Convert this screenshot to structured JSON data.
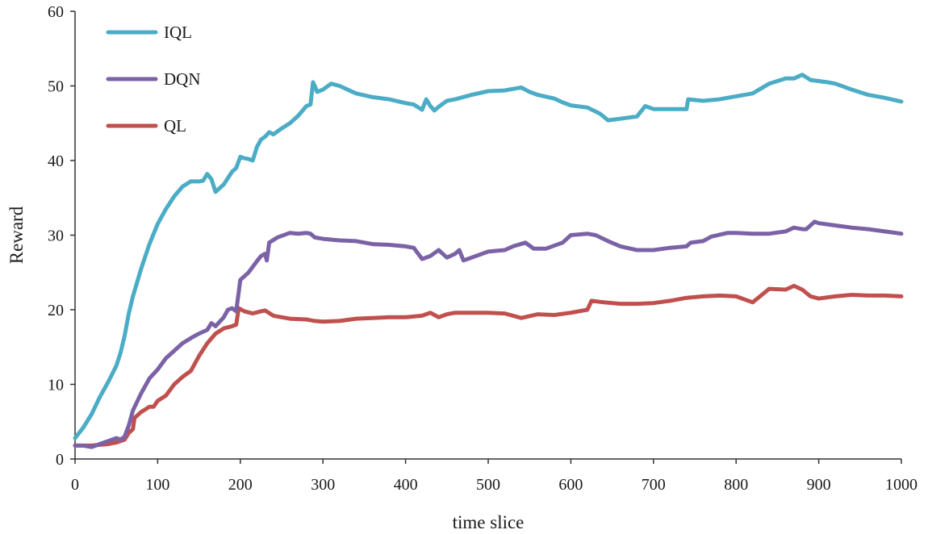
{
  "chart_data": {
    "type": "line",
    "title": "",
    "xlabel": "time slice",
    "ylabel": "Reward",
    "xlim": [
      0,
      1000
    ],
    "ylim": [
      0,
      60
    ],
    "x_ticks": [
      0,
      100,
      200,
      300,
      400,
      500,
      600,
      700,
      800,
      900,
      1000
    ],
    "y_ticks": [
      0,
      10,
      20,
      30,
      40,
      50,
      60
    ],
    "grid": false,
    "legend_position": "top-left",
    "series": [
      {
        "name": "IQL",
        "color": "#4bacc6",
        "points": [
          [
            0,
            2.8
          ],
          [
            10,
            4.2
          ],
          [
            20,
            6.0
          ],
          [
            30,
            8.3
          ],
          [
            40,
            10.3
          ],
          [
            50,
            12.5
          ],
          [
            55,
            14.2
          ],
          [
            60,
            16.5
          ],
          [
            65,
            19.5
          ],
          [
            70,
            21.8
          ],
          [
            80,
            25.5
          ],
          [
            90,
            28.8
          ],
          [
            100,
            31.5
          ],
          [
            110,
            33.5
          ],
          [
            120,
            35.2
          ],
          [
            130,
            36.5
          ],
          [
            140,
            37.2
          ],
          [
            150,
            37.2
          ],
          [
            155,
            37.3
          ],
          [
            160,
            38.2
          ],
          [
            165,
            37.5
          ],
          [
            170,
            35.8
          ],
          [
            180,
            36.8
          ],
          [
            190,
            38.5
          ],
          [
            195,
            39.0
          ],
          [
            200,
            40.5
          ],
          [
            205,
            40.3
          ],
          [
            210,
            40.2
          ],
          [
            215,
            40.0
          ],
          [
            220,
            41.8
          ],
          [
            225,
            42.8
          ],
          [
            230,
            43.2
          ],
          [
            235,
            43.8
          ],
          [
            240,
            43.5
          ],
          [
            250,
            44.3
          ],
          [
            260,
            45.0
          ],
          [
            270,
            46.0
          ],
          [
            280,
            47.3
          ],
          [
            285,
            47.5
          ],
          [
            288,
            50.5
          ],
          [
            290,
            50.0
          ],
          [
            293,
            49.2
          ],
          [
            300,
            49.5
          ],
          [
            310,
            50.3
          ],
          [
            320,
            50.0
          ],
          [
            340,
            49.0
          ],
          [
            360,
            48.5
          ],
          [
            380,
            48.2
          ],
          [
            400,
            47.7
          ],
          [
            410,
            47.5
          ],
          [
            420,
            46.8
          ],
          [
            425,
            48.2
          ],
          [
            430,
            47.3
          ],
          [
            435,
            46.7
          ],
          [
            440,
            47.2
          ],
          [
            450,
            48.0
          ],
          [
            460,
            48.2
          ],
          [
            480,
            48.8
          ],
          [
            500,
            49.3
          ],
          [
            520,
            49.4
          ],
          [
            540,
            49.8
          ],
          [
            550,
            49.2
          ],
          [
            560,
            48.8
          ],
          [
            580,
            48.3
          ],
          [
            590,
            47.8
          ],
          [
            600,
            47.4
          ],
          [
            620,
            47.1
          ],
          [
            635,
            46.3
          ],
          [
            645,
            45.4
          ],
          [
            660,
            45.6
          ],
          [
            680,
            45.9
          ],
          [
            690,
            47.3
          ],
          [
            700,
            46.9
          ],
          [
            720,
            46.9
          ],
          [
            740,
            46.9
          ],
          [
            742,
            48.2
          ],
          [
            760,
            48.0
          ],
          [
            780,
            48.2
          ],
          [
            800,
            48.6
          ],
          [
            820,
            49.0
          ],
          [
            840,
            50.3
          ],
          [
            860,
            51.0
          ],
          [
            870,
            51.0
          ],
          [
            880,
            51.5
          ],
          [
            890,
            50.8
          ],
          [
            910,
            50.5
          ],
          [
            920,
            50.3
          ],
          [
            940,
            49.5
          ],
          [
            960,
            48.8
          ],
          [
            980,
            48.4
          ],
          [
            1000,
            47.9
          ]
        ]
      },
      {
        "name": "DQN",
        "color": "#7b62a6",
        "points": [
          [
            0,
            1.8
          ],
          [
            10,
            1.8
          ],
          [
            20,
            1.6
          ],
          [
            30,
            2.0
          ],
          [
            40,
            2.4
          ],
          [
            50,
            2.8
          ],
          [
            55,
            2.6
          ],
          [
            60,
            3.0
          ],
          [
            65,
            4.5
          ],
          [
            70,
            6.5
          ],
          [
            80,
            8.8
          ],
          [
            90,
            10.8
          ],
          [
            100,
            12.0
          ],
          [
            110,
            13.5
          ],
          [
            120,
            14.5
          ],
          [
            130,
            15.5
          ],
          [
            140,
            16.2
          ],
          [
            150,
            16.8
          ],
          [
            160,
            17.3
          ],
          [
            165,
            18.2
          ],
          [
            170,
            17.8
          ],
          [
            180,
            19.0
          ],
          [
            185,
            20.0
          ],
          [
            190,
            20.2
          ],
          [
            195,
            19.8
          ],
          [
            200,
            24.0
          ],
          [
            210,
            25.0
          ],
          [
            220,
            26.5
          ],
          [
            225,
            27.2
          ],
          [
            230,
            27.5
          ],
          [
            232,
            26.6
          ],
          [
            235,
            29.0
          ],
          [
            245,
            29.7
          ],
          [
            260,
            30.3
          ],
          [
            270,
            30.2
          ],
          [
            280,
            30.3
          ],
          [
            285,
            30.2
          ],
          [
            290,
            29.7
          ],
          [
            300,
            29.5
          ],
          [
            320,
            29.3
          ],
          [
            340,
            29.2
          ],
          [
            360,
            28.8
          ],
          [
            380,
            28.7
          ],
          [
            400,
            28.5
          ],
          [
            410,
            28.3
          ],
          [
            420,
            26.8
          ],
          [
            430,
            27.2
          ],
          [
            440,
            28.0
          ],
          [
            450,
            27.0
          ],
          [
            460,
            27.5
          ],
          [
            465,
            28.0
          ],
          [
            470,
            26.6
          ],
          [
            480,
            27.0
          ],
          [
            500,
            27.8
          ],
          [
            520,
            28.0
          ],
          [
            530,
            28.5
          ],
          [
            545,
            29.0
          ],
          [
            555,
            28.2
          ],
          [
            570,
            28.2
          ],
          [
            590,
            29.0
          ],
          [
            600,
            30.0
          ],
          [
            620,
            30.2
          ],
          [
            630,
            30.0
          ],
          [
            645,
            29.2
          ],
          [
            660,
            28.5
          ],
          [
            680,
            28.0
          ],
          [
            700,
            28.0
          ],
          [
            720,
            28.3
          ],
          [
            740,
            28.5
          ],
          [
            745,
            29.0
          ],
          [
            760,
            29.2
          ],
          [
            770,
            29.8
          ],
          [
            790,
            30.3
          ],
          [
            800,
            30.3
          ],
          [
            820,
            30.2
          ],
          [
            840,
            30.2
          ],
          [
            860,
            30.5
          ],
          [
            870,
            31.0
          ],
          [
            880,
            30.8
          ],
          [
            885,
            30.8
          ],
          [
            895,
            31.8
          ],
          [
            900,
            31.6
          ],
          [
            920,
            31.3
          ],
          [
            940,
            31.0
          ],
          [
            960,
            30.8
          ],
          [
            980,
            30.5
          ],
          [
            1000,
            30.2
          ]
        ]
      },
      {
        "name": "QL",
        "color": "#c0504d",
        "points": [
          [
            0,
            1.8
          ],
          [
            10,
            1.8
          ],
          [
            20,
            1.8
          ],
          [
            30,
            1.9
          ],
          [
            40,
            2.0
          ],
          [
            50,
            2.2
          ],
          [
            55,
            2.4
          ],
          [
            60,
            2.6
          ],
          [
            65,
            3.5
          ],
          [
            70,
            4.0
          ],
          [
            72,
            5.5
          ],
          [
            80,
            6.3
          ],
          [
            90,
            7.0
          ],
          [
            95,
            7.0
          ],
          [
            100,
            7.8
          ],
          [
            110,
            8.5
          ],
          [
            120,
            10.0
          ],
          [
            130,
            11.0
          ],
          [
            140,
            11.8
          ],
          [
            150,
            13.8
          ],
          [
            160,
            15.5
          ],
          [
            170,
            16.8
          ],
          [
            180,
            17.5
          ],
          [
            190,
            17.8
          ],
          [
            195,
            18.0
          ],
          [
            198,
            20.2
          ],
          [
            205,
            19.8
          ],
          [
            215,
            19.5
          ],
          [
            225,
            19.8
          ],
          [
            230,
            19.9
          ],
          [
            240,
            19.2
          ],
          [
            260,
            18.8
          ],
          [
            280,
            18.7
          ],
          [
            290,
            18.5
          ],
          [
            300,
            18.4
          ],
          [
            320,
            18.5
          ],
          [
            340,
            18.8
          ],
          [
            360,
            18.9
          ],
          [
            380,
            19.0
          ],
          [
            400,
            19.0
          ],
          [
            420,
            19.2
          ],
          [
            430,
            19.6
          ],
          [
            440,
            19.0
          ],
          [
            450,
            19.4
          ],
          [
            460,
            19.6
          ],
          [
            500,
            19.6
          ],
          [
            520,
            19.5
          ],
          [
            540,
            18.9
          ],
          [
            560,
            19.4
          ],
          [
            580,
            19.3
          ],
          [
            600,
            19.6
          ],
          [
            620,
            20.0
          ],
          [
            625,
            21.2
          ],
          [
            640,
            21.0
          ],
          [
            660,
            20.8
          ],
          [
            680,
            20.8
          ],
          [
            700,
            20.9
          ],
          [
            720,
            21.2
          ],
          [
            740,
            21.6
          ],
          [
            760,
            21.8
          ],
          [
            780,
            21.9
          ],
          [
            800,
            21.8
          ],
          [
            820,
            21.0
          ],
          [
            840,
            22.8
          ],
          [
            860,
            22.7
          ],
          [
            870,
            23.2
          ],
          [
            880,
            22.7
          ],
          [
            890,
            21.8
          ],
          [
            900,
            21.5
          ],
          [
            920,
            21.8
          ],
          [
            940,
            22.0
          ],
          [
            960,
            21.9
          ],
          [
            980,
            21.9
          ],
          [
            1000,
            21.8
          ]
        ]
      }
    ]
  }
}
